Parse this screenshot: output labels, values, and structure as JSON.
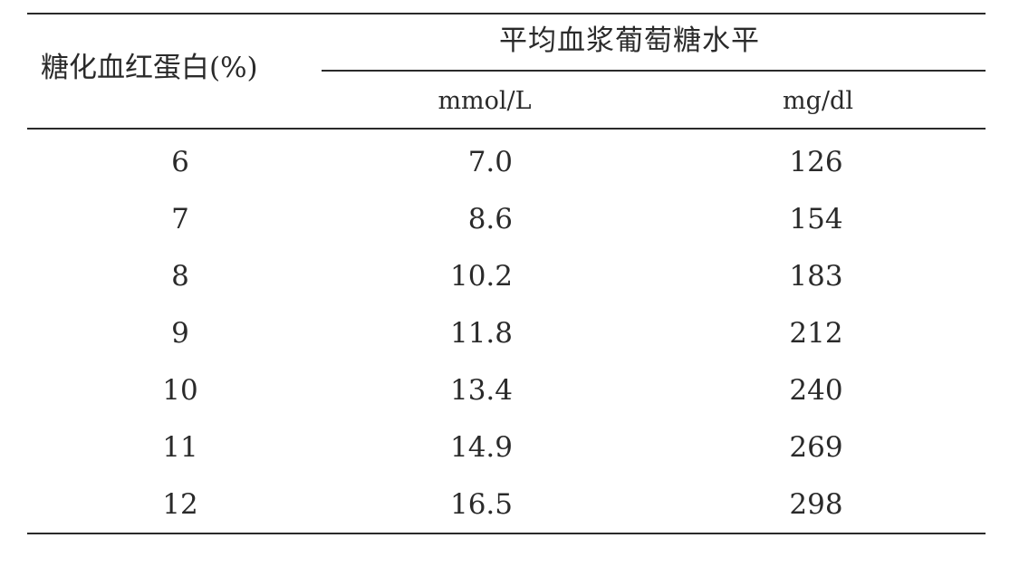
{
  "table": {
    "row_header": "糖化血红蛋白(%)",
    "group_header": "平均血浆葡萄糖水平",
    "units": [
      "mmol/L",
      "mg/dl"
    ],
    "rows": [
      {
        "hba1c": "6",
        "mmol": "7.0",
        "mgdl": "126"
      },
      {
        "hba1c": "7",
        "mmol": "8.6",
        "mgdl": "154"
      },
      {
        "hba1c": "8",
        "mmol": "10.2",
        "mgdl": "183"
      },
      {
        "hba1c": "9",
        "mmol": "11.8",
        "mgdl": "212"
      },
      {
        "hba1c": "10",
        "mmol": "13.4",
        "mgdl": "240"
      },
      {
        "hba1c": "11",
        "mmol": "14.9",
        "mgdl": "269"
      },
      {
        "hba1c": "12",
        "mmol": "16.5",
        "mgdl": "298"
      }
    ]
  }
}
